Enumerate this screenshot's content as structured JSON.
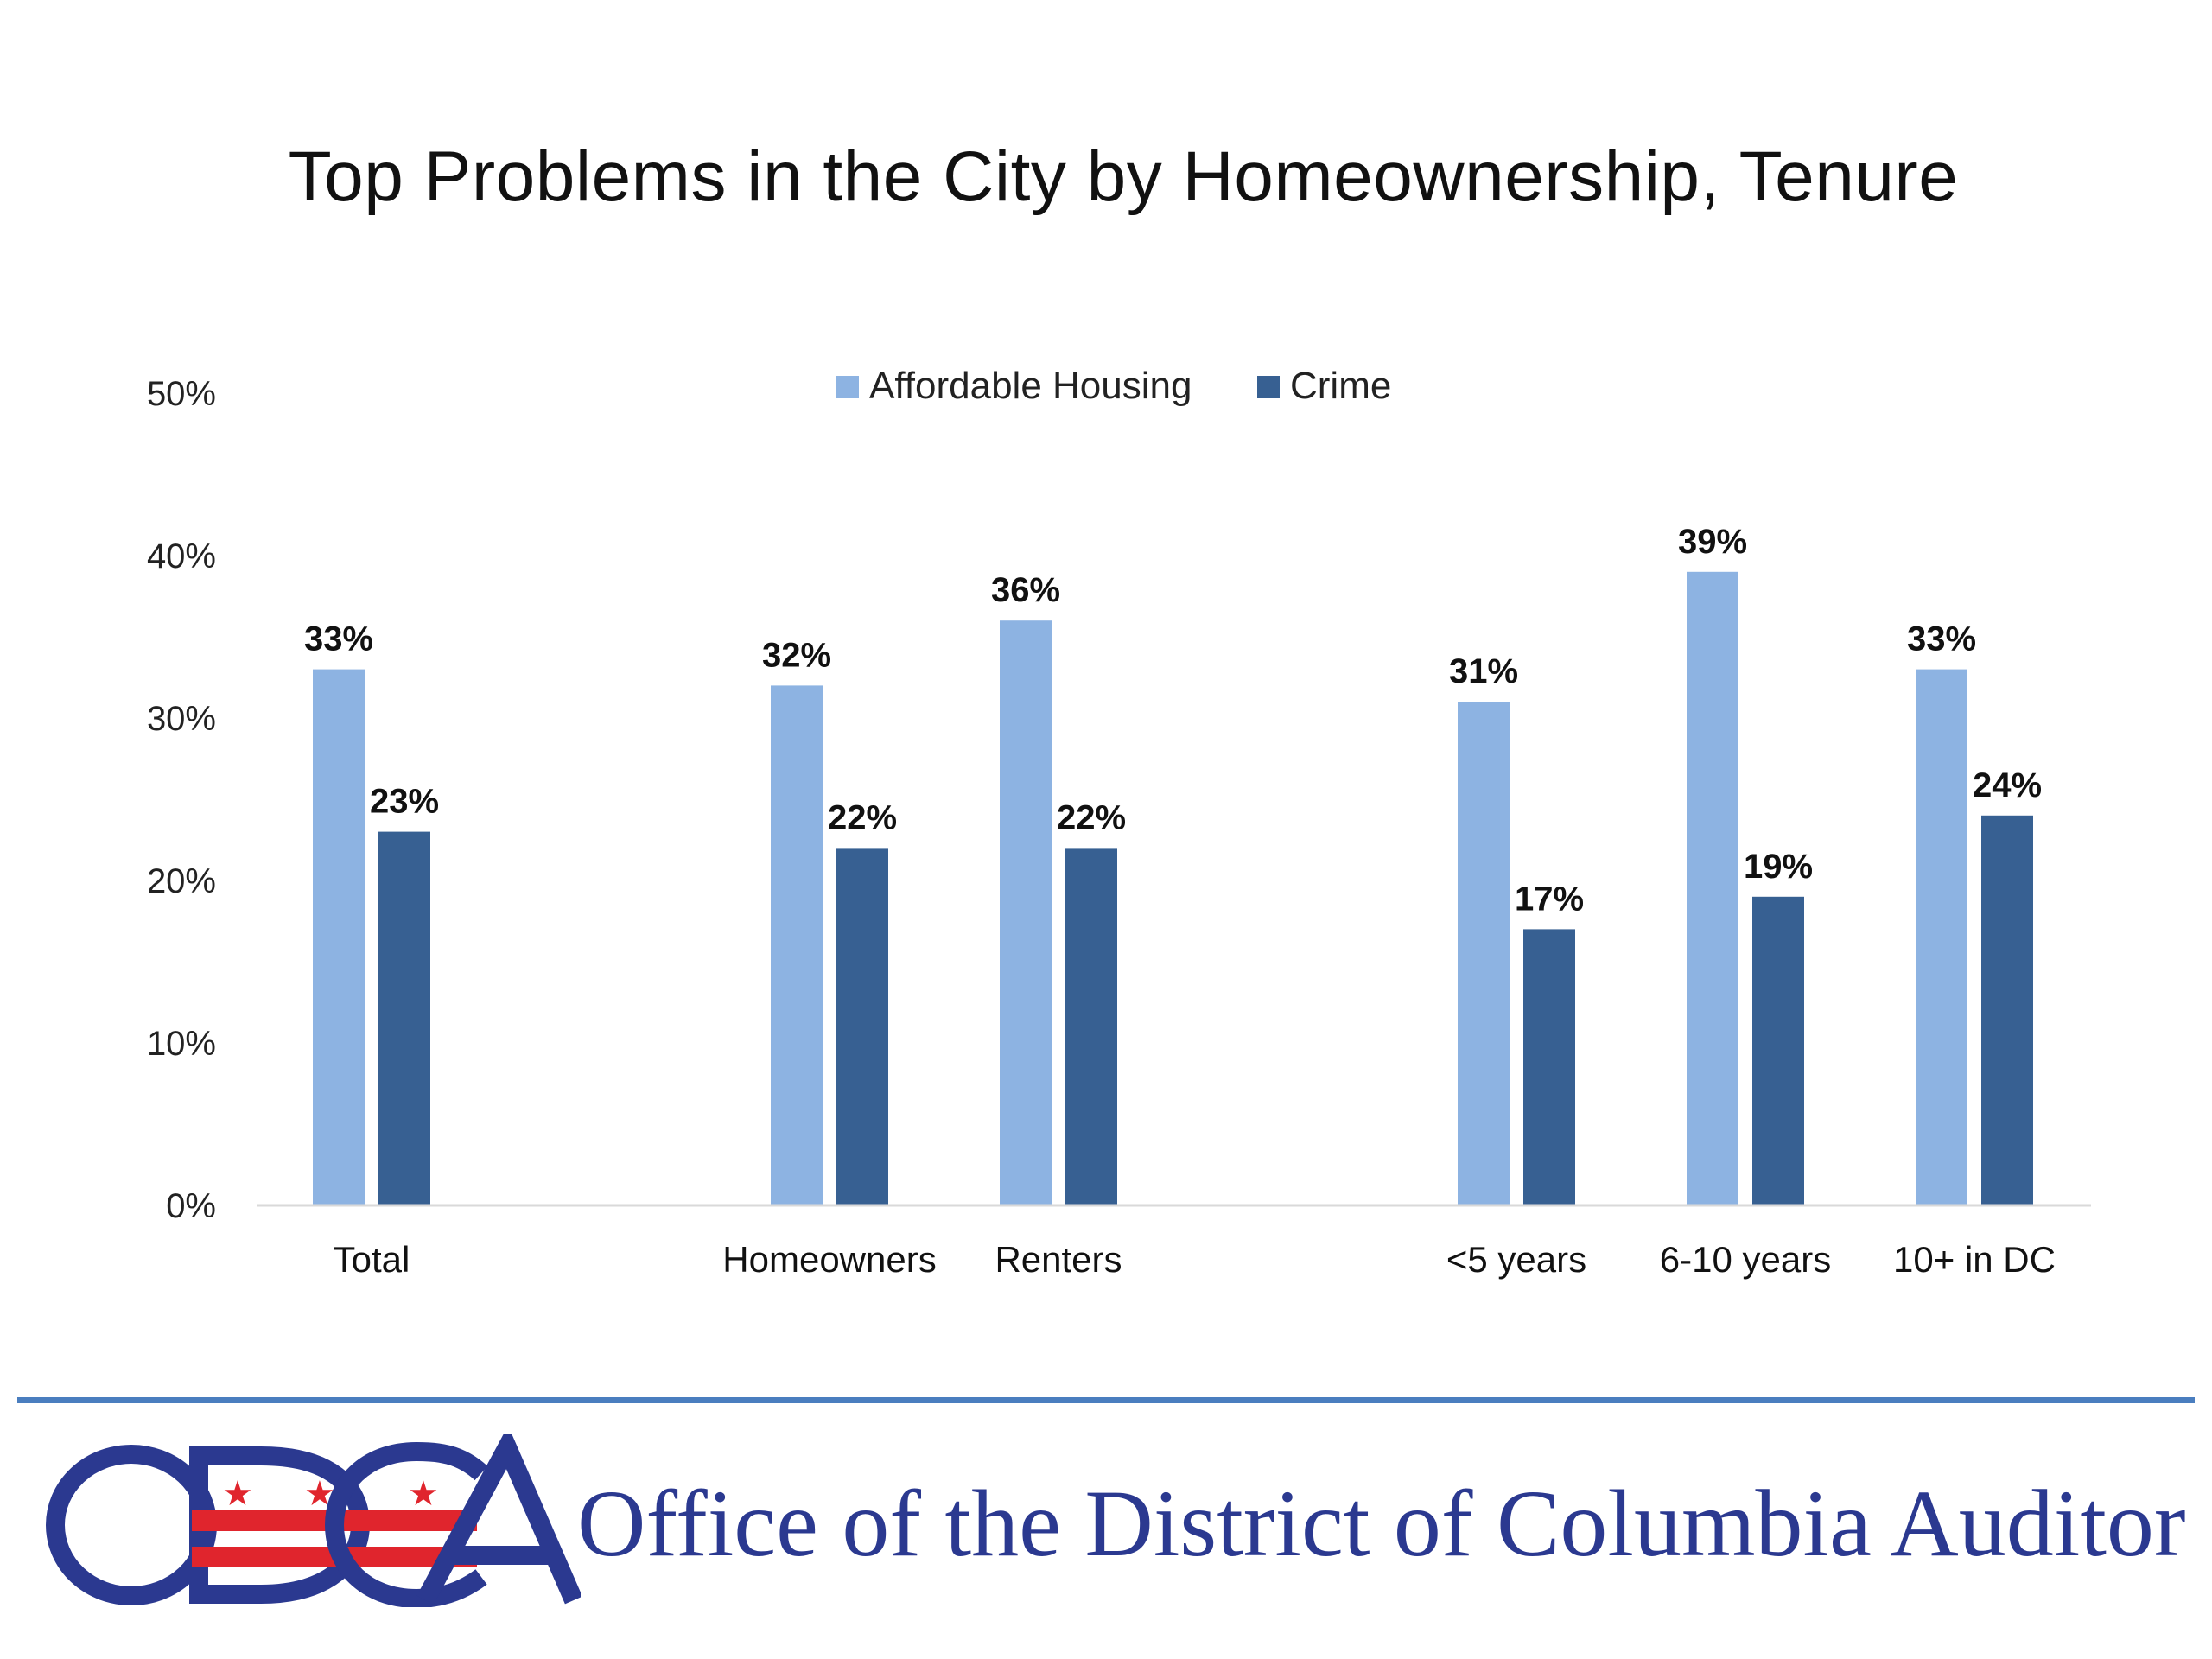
{
  "colors": {
    "affordable_housing": "#8db3e2",
    "crime": "#376092",
    "axis_line": "#d9d9d9",
    "footer_rule": "#4a7ebf",
    "logo_blue": "#2b3990",
    "logo_red": "#e0252d"
  },
  "chart_data": {
    "type": "bar",
    "title": "Top Problems in the City by Homeownership, Tenure",
    "categories": [
      "Total",
      "Homeowners",
      "Renters",
      "<5 years",
      "6-10 years",
      "10+ in DC"
    ],
    "series": [
      {
        "name": "Affordable Housing",
        "values": [
          33,
          32,
          36,
          31,
          39,
          33
        ],
        "labels": [
          "33%",
          "32%",
          "36%",
          "31%",
          "39%",
          "33%"
        ]
      },
      {
        "name": "Crime",
        "values": [
          23,
          22,
          22,
          17,
          19,
          24
        ],
        "labels": [
          "23%",
          "22%",
          "22%",
          "17%",
          "19%",
          "24%"
        ]
      }
    ],
    "yticks": [
      "0%",
      "10%",
      "20%",
      "30%",
      "40%",
      "50%"
    ],
    "ylim": [
      0,
      50
    ],
    "grid": false,
    "legend": "top-center",
    "xlabel": "",
    "ylabel": ""
  },
  "footer": {
    "logo_icon": "odca-logo",
    "org_name": "Office of the District of Columbia Auditor"
  }
}
